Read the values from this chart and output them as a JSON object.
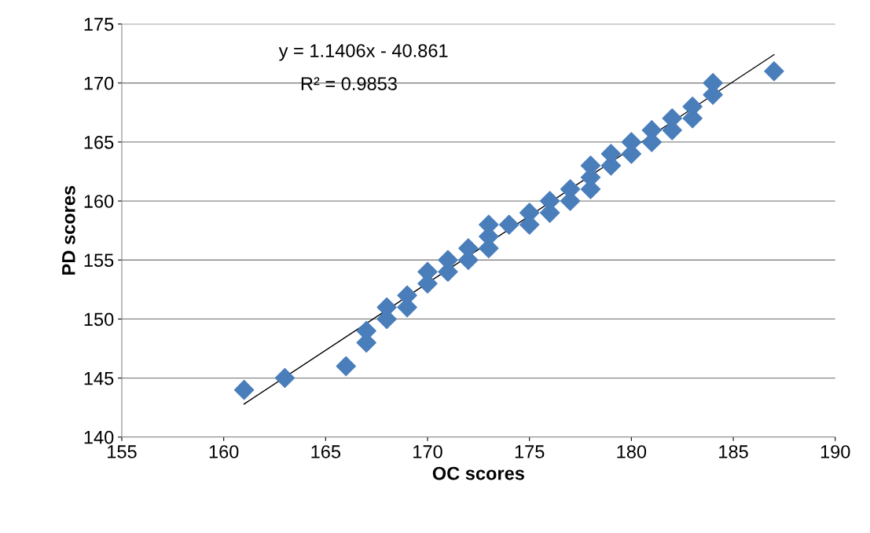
{
  "chart_data": {
    "type": "scatter",
    "xlabel": "OC scores",
    "ylabel": "PD scores",
    "xlim": [
      155,
      190
    ],
    "ylim": [
      140,
      175
    ],
    "xticks": [
      155,
      160,
      165,
      170,
      175,
      180,
      185,
      190
    ],
    "yticks": [
      140,
      145,
      150,
      155,
      160,
      165,
      170,
      175
    ],
    "grid": "y",
    "legend": false,
    "annotations": [
      "y = 1.1406x - 40.861",
      "R² = 0.9853"
    ],
    "series": [
      {
        "marker": "diamond",
        "color": "#4a7ebb",
        "x": [
          161,
          163,
          166,
          167,
          167,
          168,
          168,
          169,
          169,
          170,
          170,
          171,
          171,
          172,
          172,
          173,
          173,
          173,
          174,
          175,
          175,
          176,
          176,
          177,
          177,
          178,
          178,
          178,
          179,
          179,
          180,
          180,
          181,
          181,
          182,
          182,
          183,
          183,
          184,
          184,
          187
        ],
        "values": [
          144,
          145,
          146,
          149,
          148,
          151,
          150,
          152,
          151,
          154,
          153,
          155,
          154,
          156,
          155,
          158,
          157,
          156,
          158,
          159,
          158,
          160,
          159,
          161,
          160,
          163,
          162,
          161,
          164,
          163,
          165,
          164,
          166,
          165,
          167,
          166,
          168,
          167,
          170,
          169,
          171
        ]
      },
      {
        "type": "line",
        "color": "#000000",
        "x": [
          161,
          187
        ],
        "values": [
          142.8,
          172.4
        ]
      }
    ]
  }
}
